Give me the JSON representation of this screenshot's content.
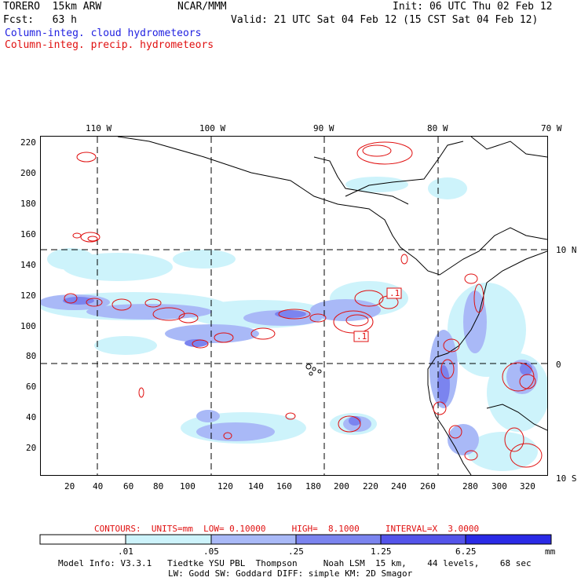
{
  "header": {
    "model": "TORERO  15km ARW",
    "org": "NCAR/MMM",
    "init": "Init: 06 UTC Thu 02 Feb 12",
    "fcst": "Fcst:   63 h",
    "valid": "Valid: 21 UTC Sat 04 Feb 12 (15 CST Sat 04 Feb 12)",
    "line_blue": "Column-integ. cloud hydrometeors",
    "line_red": "Column-integ. precip. hydrometeors"
  },
  "colors": {
    "blue_label": "#1f1fe0",
    "red_label": "#e01010",
    "shade": [
      "#ffffff",
      "#cdf3fb",
      "#a9b9f7",
      "#7b84ef",
      "#5454ea",
      "#2a2ae6"
    ]
  },
  "lon_labels": [
    "110 W",
    "100 W",
    "90 W",
    "80 W",
    "70 W"
  ],
  "lat_labels": [
    "10 N",
    "0",
    "10 S"
  ],
  "y_ticks": [
    "220",
    "200",
    "180",
    "160",
    "140",
    "120",
    "100",
    "80",
    "60",
    "40",
    "20"
  ],
  "x_ticks": [
    "20",
    "40",
    "60",
    "80",
    "100",
    "120",
    "140",
    "160",
    "180",
    "200",
    "220",
    "240",
    "260",
    "280",
    "300",
    "320"
  ],
  "contours_info": "CONTOURS:  UNITS=mm  LOW= 0.10000     HIGH=  8.1000     INTERVAL=X  3.0000",
  "colorbar": {
    "labels": [
      ".01",
      ".05",
      ".25",
      "1.25",
      "6.25"
    ],
    "units": "mm"
  },
  "footer": {
    "line1": "Model Info: V3.3.1   Tiedtke YSU PBL  Thompson     Noah LSM  15 km,    44 levels,    68 sec",
    "line2": "LW: Godd SW: Goddard DIFF: simple KM: 2D Smagor"
  },
  "map_labels": {
    "low_a": ".1",
    "low_b": ".1"
  }
}
